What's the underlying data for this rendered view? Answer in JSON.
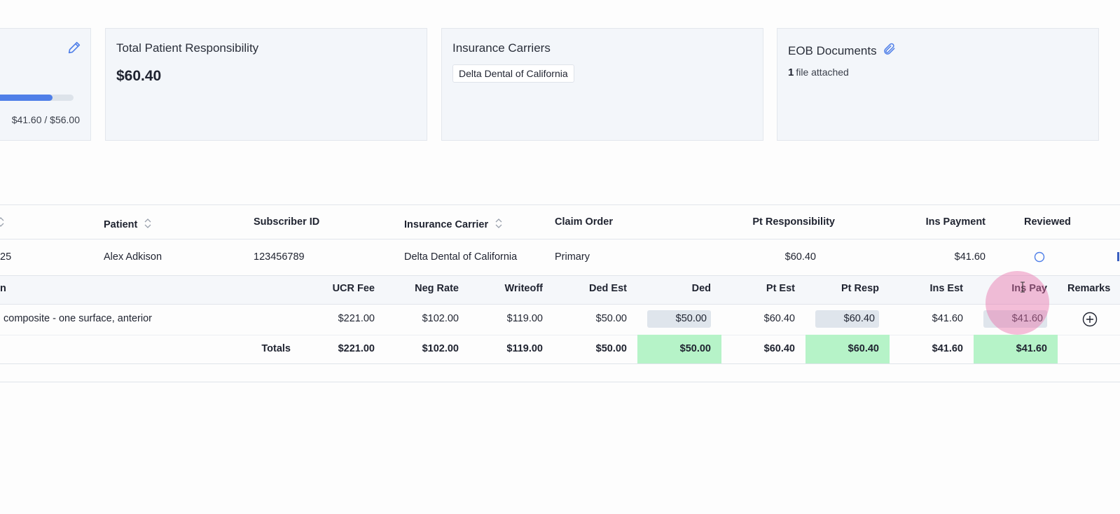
{
  "cards": {
    "progress_card": {
      "progress_text": "$41.60 / $56.00",
      "progress_fraction": 0.743
    },
    "patient_resp": {
      "title": "Total Patient Responsibility",
      "value": "$60.40"
    },
    "carriers": {
      "title": "Insurance Carriers",
      "chip": "Delta Dental of California"
    },
    "eob": {
      "title": "EOB Documents",
      "count": "1",
      "text": "file attached"
    }
  },
  "claims_table": {
    "headers": {
      "patient": "Patient",
      "subscriber_id": "Subscriber ID",
      "carrier": "Insurance Carrier",
      "claim_order": "Claim Order",
      "pt_resp": "Pt Responsibility",
      "ins_payment": "Ins Payment",
      "reviewed": "Reviewed"
    },
    "row": {
      "date_fragment": "25",
      "patient": "Alex Adkison",
      "subscriber_id": "123456789",
      "carrier": "Delta Dental of California",
      "claim_order": "Primary",
      "pt_resp": "$60.40",
      "ins_payment": "$41.60"
    }
  },
  "procedure_table": {
    "headers": {
      "desc_fragment": "n",
      "ucr_fee": "UCR Fee",
      "neg_rate": "Neg Rate",
      "writeoff": "Writeoff",
      "ded_est": "Ded Est",
      "ded": "Ded",
      "pt_est": "Pt Est",
      "pt_resp": "Pt Resp",
      "ins_est": "Ins Est",
      "ins_pay": "Ins Pay",
      "remarks": "Remarks"
    },
    "row": {
      "description": "composite - one surface, anterior",
      "ucr_fee": "$221.00",
      "neg_rate": "$102.00",
      "writeoff": "$119.00",
      "ded_est": "$50.00",
      "ded": "$50.00",
      "pt_est": "$60.40",
      "pt_resp": "$60.40",
      "ins_est": "$41.60",
      "ins_pay": "$41.60"
    },
    "totals": {
      "label": "Totals",
      "ucr_fee": "$221.00",
      "neg_rate": "$102.00",
      "writeoff": "$119.00",
      "ded_est": "$50.00",
      "ded": "$50.00",
      "pt_est": "$60.40",
      "pt_resp": "$60.40",
      "ins_est": "$41.60",
      "ins_pay": "$41.60"
    }
  },
  "icons": {
    "edit": "pencil-icon",
    "attach": "paperclip-icon",
    "sort": "sort-icon",
    "reviewed": "circle-icon",
    "add_remark": "plus-circle-icon"
  },
  "colors": {
    "accent": "#4f7fe8",
    "highlight_green": "#b6f3c8",
    "editable_pill": "#dfe5ec",
    "card_bg": "#f3f6fa"
  }
}
